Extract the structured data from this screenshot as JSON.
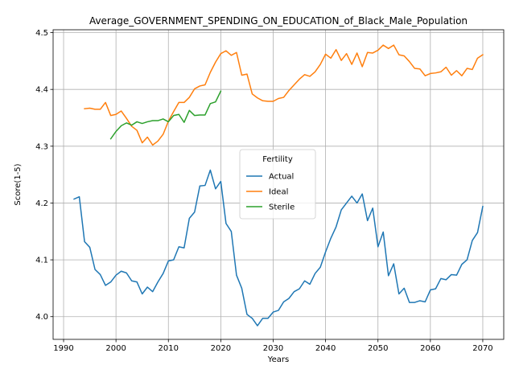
{
  "chart_data": {
    "type": "line",
    "title": "Average_GOVERNMENT_SPENDING_ON_EDUCATION_of_Black_Male_Population",
    "xlabel": "Years",
    "ylabel": "Score(1-5)",
    "xlim": [
      1988,
      2074
    ],
    "ylim": [
      3.96,
      4.505
    ],
    "x_ticks": [
      1990,
      2000,
      2010,
      2020,
      2030,
      2040,
      2050,
      2060,
      2070
    ],
    "y_ticks": [
      4.0,
      4.1,
      4.2,
      4.3,
      4.4,
      4.5
    ],
    "x_tick_labels": [
      "1990",
      "2000",
      "2010",
      "2020",
      "2030",
      "2040",
      "2050",
      "2060",
      "2070"
    ],
    "y_tick_labels": [
      "4.0",
      "4.1",
      "4.2",
      "4.3",
      "4.4",
      "4.5"
    ],
    "grid": true,
    "legend": {
      "title": "Fertility",
      "placement": "center"
    },
    "series": [
      {
        "name": "Actual",
        "color": "#1f77b4",
        "x": [
          1992,
          1993,
          1994,
          1995,
          1996,
          1997,
          1998,
          1999,
          2000,
          2001,
          2002,
          2003,
          2004,
          2005,
          2006,
          2007,
          2008,
          2009,
          2010,
          2011,
          2012,
          2013,
          2014,
          2015,
          2016,
          2017,
          2018,
          2019,
          2020,
          2021,
          2022,
          2023,
          2024,
          2025,
          2026,
          2027,
          2028,
          2029,
          2030,
          2031,
          2032,
          2033,
          2034,
          2035,
          2036,
          2037,
          2038,
          2039,
          2040,
          2041,
          2042,
          2043,
          2044,
          2045,
          2046,
          2047,
          2048,
          2049,
          2050,
          2051,
          2052,
          2053,
          2054,
          2055,
          2056,
          2057,
          2058,
          2059,
          2060,
          2061,
          2062,
          2063,
          2064,
          2065,
          2066,
          2067,
          2068,
          2069,
          2070
        ],
        "values": [
          4.207,
          4.211,
          4.132,
          4.122,
          4.083,
          4.074,
          4.055,
          4.061,
          4.073,
          4.08,
          4.077,
          4.063,
          4.061,
          4.04,
          4.052,
          4.044,
          4.061,
          4.076,
          4.098,
          4.1,
          4.123,
          4.121,
          4.173,
          4.184,
          4.23,
          4.231,
          4.258,
          4.225,
          4.238,
          4.164,
          4.15,
          4.073,
          4.05,
          4.004,
          3.997,
          3.984,
          3.997,
          3.997,
          4.008,
          4.011,
          4.026,
          4.032,
          4.044,
          4.049,
          4.063,
          4.057,
          4.076,
          4.087,
          4.114,
          4.138,
          4.158,
          4.188,
          4.2,
          4.212,
          4.2,
          4.216,
          4.169,
          4.191,
          4.123,
          4.149,
          4.072,
          4.093,
          4.04,
          4.05,
          4.025,
          4.025,
          4.028,
          4.026,
          4.047,
          4.049,
          4.067,
          4.065,
          4.074,
          4.073,
          4.092,
          4.1,
          4.134,
          4.148,
          4.194
        ]
      },
      {
        "name": "Ideal",
        "color": "#ff7f0e",
        "x": [
          1994,
          1995,
          1996,
          1997,
          1998,
          1999,
          2000,
          2001,
          2002,
          2003,
          2004,
          2005,
          2006,
          2007,
          2008,
          2009,
          2010,
          2011,
          2012,
          2013,
          2014,
          2015,
          2016,
          2017,
          2018,
          2019,
          2020,
          2021,
          2022,
          2023,
          2024,
          2025,
          2026,
          2027,
          2028,
          2029,
          2030,
          2031,
          2032,
          2033,
          2034,
          2035,
          2036,
          2037,
          2038,
          2039,
          2040,
          2041,
          2042,
          2043,
          2044,
          2045,
          2046,
          2047,
          2048,
          2049,
          2050,
          2051,
          2052,
          2053,
          2054,
          2055,
          2056,
          2057,
          2058,
          2059,
          2060,
          2061,
          2062,
          2063,
          2064,
          2065,
          2066,
          2067,
          2068,
          2069,
          2070
        ],
        "values": [
          4.366,
          4.367,
          4.365,
          4.365,
          4.377,
          4.354,
          4.356,
          4.362,
          4.349,
          4.335,
          4.328,
          4.306,
          4.316,
          4.302,
          4.309,
          4.321,
          4.344,
          4.361,
          4.377,
          4.377,
          4.386,
          4.401,
          4.406,
          4.408,
          4.43,
          4.448,
          4.463,
          4.468,
          4.46,
          4.465,
          4.425,
          4.427,
          4.392,
          4.385,
          4.38,
          4.379,
          4.379,
          4.384,
          4.386,
          4.398,
          4.408,
          4.418,
          4.426,
          4.423,
          4.431,
          4.444,
          4.462,
          4.455,
          4.47,
          4.451,
          4.463,
          4.444,
          4.464,
          4.44,
          4.465,
          4.464,
          4.469,
          4.478,
          4.472,
          4.478,
          4.461,
          4.459,
          4.449,
          4.437,
          4.436,
          4.424,
          4.428,
          4.429,
          4.431,
          4.439,
          4.425,
          4.433,
          4.424,
          4.437,
          4.435,
          4.455,
          4.461
        ]
      },
      {
        "name": "Sterile",
        "color": "#2ca02c",
        "x": [
          1999,
          2000,
          2001,
          2002,
          2003,
          2004,
          2005,
          2006,
          2007,
          2008,
          2009,
          2010,
          2011,
          2012,
          2013,
          2014,
          2015,
          2016,
          2017,
          2018,
          2019,
          2020
        ],
        "values": [
          4.313,
          4.326,
          4.336,
          4.341,
          4.337,
          4.343,
          4.34,
          4.343,
          4.345,
          4.345,
          4.348,
          4.343,
          4.354,
          4.356,
          4.342,
          4.363,
          4.354,
          4.355,
          4.355,
          4.375,
          4.378,
          4.397
        ]
      }
    ]
  }
}
